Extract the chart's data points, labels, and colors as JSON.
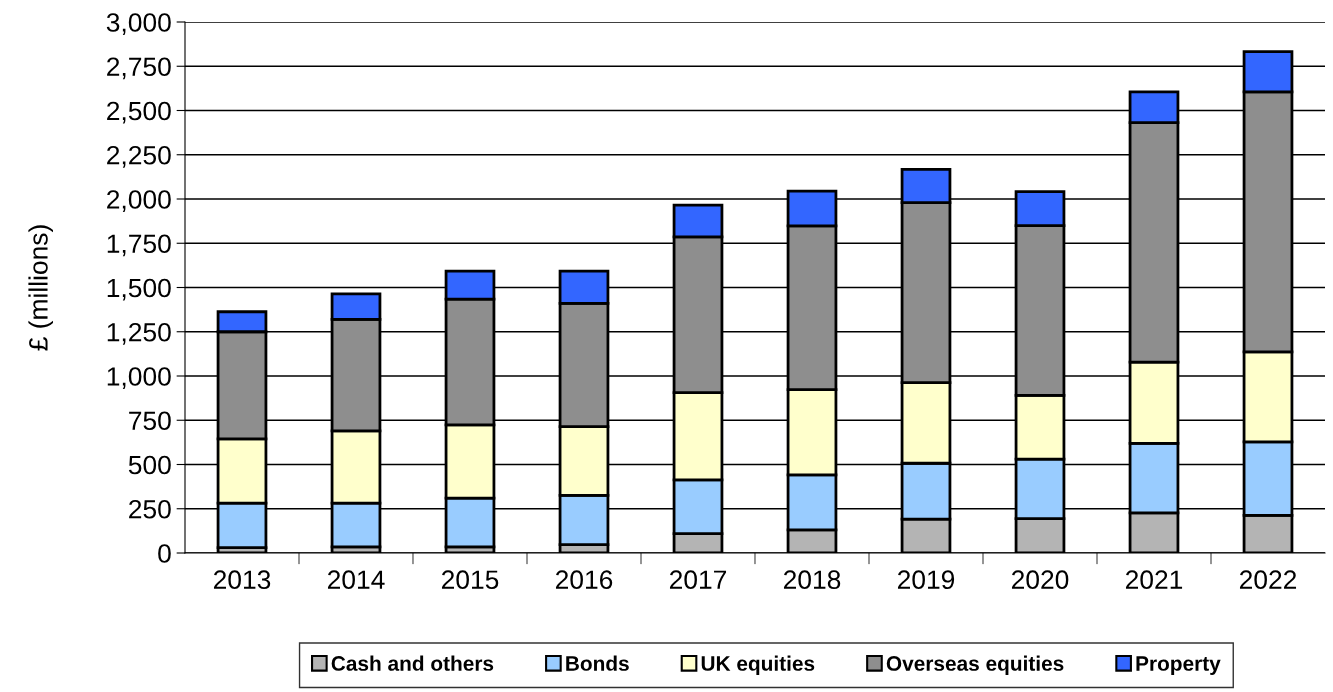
{
  "chart_data": {
    "type": "bar",
    "stacked": true,
    "ylabel": "£ (millions)",
    "categories": [
      "2013",
      "2014",
      "2015",
      "2016",
      "2017",
      "2018",
      "2019",
      "2020",
      "2021",
      "2022"
    ],
    "series": [
      {
        "name": "Cash and others",
        "color": "#b4b4b4",
        "values": [
          30,
          35,
          35,
          47,
          109,
          131,
          191,
          194,
          227,
          213
        ]
      },
      {
        "name": "Bonds",
        "color": "#99ccff",
        "values": [
          252,
          247,
          275,
          278,
          304,
          310,
          316,
          336,
          392,
          415
        ]
      },
      {
        "name": "UK equities",
        "color": "#ffffcc",
        "values": [
          363,
          408,
          414,
          389,
          493,
          482,
          455,
          361,
          460,
          508
        ]
      },
      {
        "name": "Overseas equities",
        "color": "#8e8e8e",
        "values": [
          605,
          630,
          710,
          696,
          880,
          925,
          1017,
          959,
          1352,
          1469
        ]
      },
      {
        "name": "Property",
        "color": "#3366ff",
        "values": [
          113,
          144,
          158,
          182,
          180,
          197,
          188,
          192,
          174,
          227
        ]
      }
    ],
    "ylim": [
      0,
      3000
    ],
    "yticks": [
      0,
      250,
      500,
      750,
      {
        "value": 1000,
        "label": "1,000"
      },
      {
        "value": 1250,
        "label": "1,250"
      },
      {
        "value": 1500,
        "label": "1,500"
      },
      {
        "value": 1750,
        "label": "1,750"
      },
      {
        "value": 2000,
        "label": "2,000"
      },
      {
        "value": 2250,
        "label": "2,250"
      },
      {
        "value": 2500,
        "label": "2,500"
      },
      {
        "value": 2750,
        "label": "2,750"
      },
      {
        "value": 3000,
        "label": "3,000"
      }
    ],
    "grid": "y",
    "legend": "bottom"
  }
}
